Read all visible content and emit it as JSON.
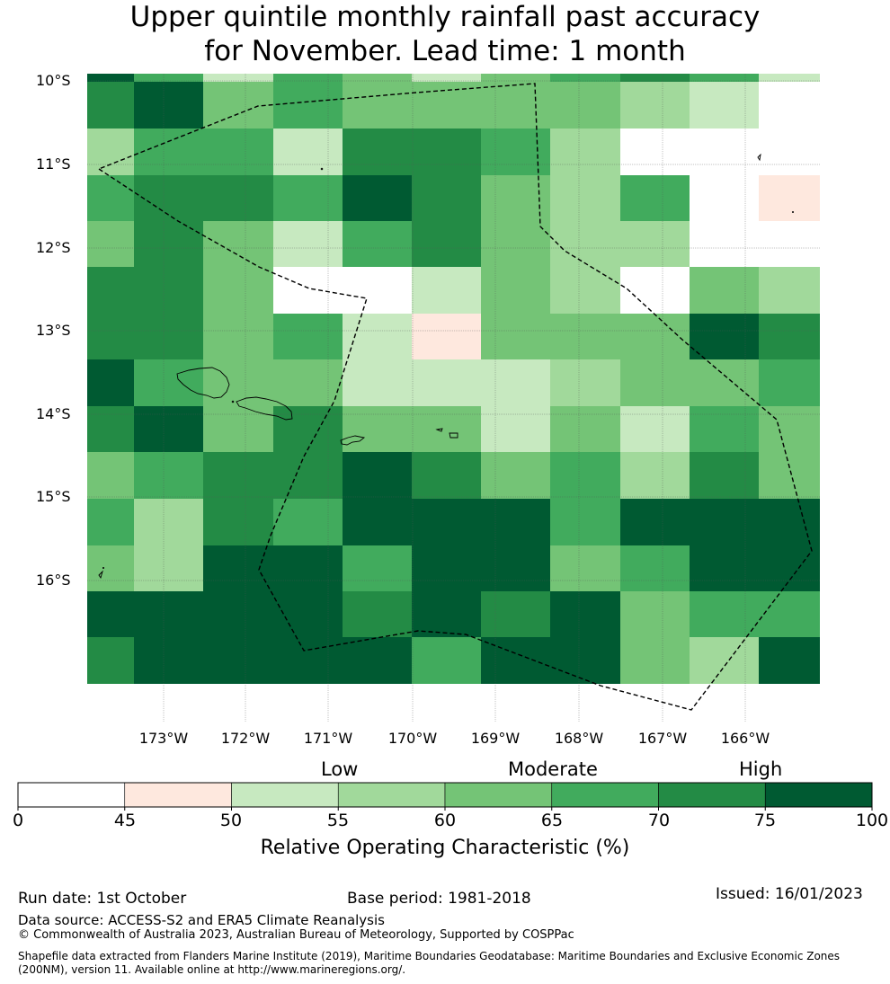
{
  "title": {
    "line1": "Upper quintile monthly rainfall past accuracy",
    "line2": "for November. Lead time: 1 month"
  },
  "colors": {
    "c0": "#ffffff",
    "c1": "#fee8de",
    "c2": "#c7e9c0",
    "c3": "#a1d99b",
    "c4": "#74c476",
    "c5": "#41ab5d",
    "c6": "#238b45",
    "c7": "#005a32"
  },
  "map": {
    "lat_labels": [
      "10°S",
      "11°S",
      "12°S",
      "13°S",
      "14°S",
      "15°S",
      "16°S"
    ],
    "lon_labels": [
      "173°W",
      "172°W",
      "171°W",
      "170°W",
      "169°W",
      "168°W",
      "167°W",
      "166°W"
    ],
    "grid_classes": [
      [
        7,
        5,
        2,
        5,
        4,
        2,
        4,
        5,
        6,
        5,
        2
      ],
      [
        6,
        7,
        4,
        5,
        4,
        4,
        4,
        4,
        3,
        2,
        0
      ],
      [
        3,
        5,
        5,
        2,
        6,
        6,
        5,
        3,
        0,
        0,
        0
      ],
      [
        5,
        6,
        6,
        5,
        7,
        6,
        4,
        3,
        5,
        0,
        1
      ],
      [
        4,
        6,
        4,
        2,
        5,
        6,
        4,
        3,
        3,
        0,
        0
      ],
      [
        6,
        6,
        4,
        0,
        0,
        2,
        4,
        3,
        0,
        4,
        3
      ],
      [
        6,
        6,
        4,
        5,
        2,
        1,
        4,
        4,
        4,
        7,
        6
      ],
      [
        7,
        5,
        4,
        4,
        2,
        2,
        2,
        3,
        4,
        4,
        5
      ],
      [
        6,
        7,
        4,
        6,
        4,
        4,
        2,
        4,
        2,
        5,
        4
      ],
      [
        4,
        5,
        6,
        6,
        7,
        6,
        4,
        5,
        3,
        6,
        4
      ],
      [
        5,
        3,
        6,
        5,
        7,
        7,
        7,
        5,
        7,
        7,
        7
      ],
      [
        4,
        3,
        7,
        7,
        5,
        7,
        7,
        4,
        5,
        7,
        7
      ],
      [
        7,
        7,
        7,
        7,
        6,
        7,
        6,
        7,
        4,
        5,
        5
      ],
      [
        6,
        7,
        7,
        7,
        7,
        5,
        7,
        7,
        4,
        3,
        7
      ]
    ]
  },
  "colorbar": {
    "categories": [
      "Low",
      "Moderate",
      "High"
    ],
    "bounds": [
      "0",
      "45",
      "50",
      "55",
      "60",
      "65",
      "70",
      "75",
      "100"
    ],
    "title": "Relative Operating Characteristic (%)"
  },
  "footer": {
    "run_date": "Run date: 1st October",
    "base_period": "Base period: 1981-2018",
    "issued": "Issued: 16/01/2023",
    "data_source": "Data source: ACCESS-S2 and ERA5 Climate Reanalysis",
    "copyright": "© Commonwealth of Australia 2023, Australian Bureau of Meteorology, Supported by COSPPac",
    "shapefile_line1": "Shapefile data extracted from Flanders Marine Institute (2019), Maritime Boundaries Geodatabase: Maritime Boundaries and Exclusive Economic Zones",
    "shapefile_line2": "(200NM), version 11. Available online at http://www.marineregions.org/."
  }
}
